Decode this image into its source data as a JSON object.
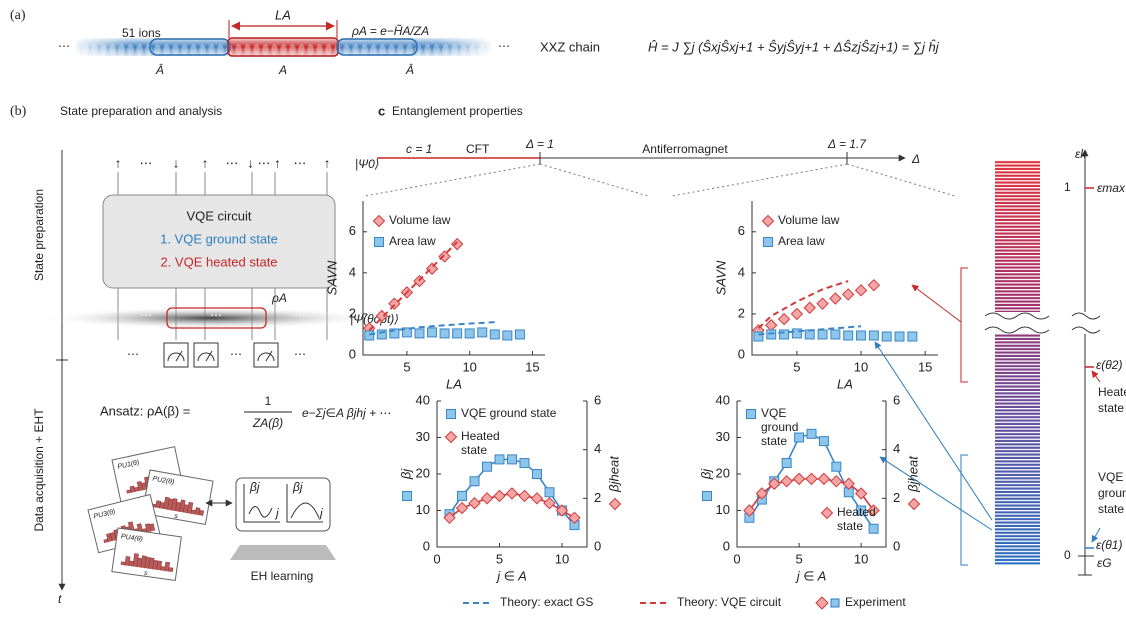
{
  "panel_a": {
    "label": "(a)",
    "ions": "51 ions",
    "subsystem_length": "LA",
    "density": "ρA = e−H̃A/ZA",
    "left_region": "Ā",
    "middle_region": "A",
    "right_region": "Ā",
    "ellipsis": "⋯",
    "chain_name": "XXZ chain",
    "hamiltonian": "Ĥ = J ∑j (ŜxjŜxj+1 + ŜyjŜyj+1 + ΔŜzjŜzj+1) = ∑j ĥj"
  },
  "panel_b": {
    "label": "(b)",
    "title": "State preparation and analysis",
    "stage_1": "State preparation",
    "stage_2": "Data acquisition + EHT",
    "time": "t",
    "top_labels": [
      "↑",
      "⋯",
      "↓",
      "↑",
      "⋯",
      "↓ ⋯ ↑",
      "⋯",
      "↑"
    ],
    "input_state": "|Ψ0⟩",
    "circuit_title": "VQE circuit",
    "circuit_item_1": "1. VQE ground state",
    "circuit_item_2": "2. VQE heated state",
    "rho": "ρA",
    "output_state": "|Ψ(θopt)⟩",
    "ellipsis": "⋯",
    "ansatz_lhs": "Ansatz: ρA(β) =",
    "ansatz_numerator": "1",
    "ansatz_denominator": "ZA(β)",
    "ansatz_exponent": "e−Σj∈A βjhj + ⋯",
    "card_labels": [
      "PU1(θ)",
      "PU2(θ)",
      "PU3(θ)",
      "PU4(θ)"
    ],
    "card_axis": "s",
    "eh_y": "βj",
    "eh_x": "j",
    "eh_title": "EH learning"
  },
  "panel_c": {
    "label": "c",
    "title": "Entanglement properties",
    "phase_1": "c = 1",
    "phase_2": "CFT",
    "point_1": "Δ = 1",
    "phase_3": "Antiferromagnet",
    "point_2": "Δ = 1.7",
    "axis": "Δ"
  },
  "spectrum": {
    "axis": "εk",
    "top_value": "1",
    "top_label": "εmax",
    "heated_level": "ε(θ2)",
    "heated_label": "Heated state",
    "ground_label": "VQE ground state",
    "ground_level": "ε(θ1)",
    "bottom_value": "0",
    "bottom_label": "εG"
  },
  "experiment_label": "Experiment",
  "chart_data": [
    {
      "type": "line",
      "xlabel": "LA",
      "ylabel": "SAVN",
      "xlim": [
        1.5,
        16
      ],
      "ylim": [
        0,
        7.5
      ],
      "xticks": [
        5,
        10,
        15
      ],
      "yticks": [
        0,
        2,
        4,
        6
      ],
      "series": [
        {
          "name": "Volume law",
          "color": "#d23a3a",
          "marker": "diamond",
          "style": "markers",
          "x": [
            2,
            3,
            4,
            5,
            6,
            7,
            8,
            9
          ],
          "values": [
            1.3,
            1.9,
            2.5,
            3.05,
            3.6,
            4.2,
            4.8,
            5.4
          ]
        },
        {
          "name": "Area law",
          "color": "#3a86c8",
          "marker": "square",
          "style": "markers",
          "x": [
            2,
            3,
            4,
            5,
            6,
            7,
            8,
            9,
            10,
            11,
            12,
            13,
            14
          ],
          "values": [
            0.95,
            1.0,
            1.05,
            1.1,
            1.05,
            1.1,
            1.05,
            1.05,
            1.05,
            1.1,
            1.0,
            0.95,
            1.0
          ]
        },
        {
          "name": "Theory: exact GS",
          "color": "#3a86c8",
          "style": "dashed",
          "x": [
            2,
            4,
            6,
            8,
            10,
            12
          ],
          "values": [
            1.0,
            1.2,
            1.35,
            1.45,
            1.53,
            1.6
          ]
        },
        {
          "name": "Theory: VQE circuit",
          "color": "#d23a3a",
          "style": "dashed",
          "x": [
            2,
            9
          ],
          "values": [
            1.2,
            5.5
          ]
        }
      ]
    },
    {
      "type": "line",
      "xlabel": "LA",
      "ylabel": "SAVN",
      "xlim": [
        1.5,
        16
      ],
      "ylim": [
        0,
        7.5
      ],
      "xticks": [
        5,
        10,
        15
      ],
      "yticks": [
        0,
        2,
        4,
        6
      ],
      "series": [
        {
          "name": "Volume law",
          "color": "#d23a3a",
          "marker": "diamond",
          "style": "markers",
          "x": [
            2,
            3,
            4,
            5,
            6,
            7,
            8,
            9,
            10,
            11
          ],
          "values": [
            1.2,
            1.45,
            1.75,
            2.0,
            2.3,
            2.5,
            2.75,
            2.95,
            3.15,
            3.4
          ]
        },
        {
          "name": "Area law",
          "color": "#3a86c8",
          "marker": "square",
          "style": "markers",
          "x": [
            2,
            3,
            4,
            5,
            6,
            7,
            8,
            9,
            10,
            11,
            12,
            13,
            14
          ],
          "values": [
            0.9,
            1.0,
            1.0,
            1.05,
            1.0,
            1.0,
            1.0,
            0.95,
            0.95,
            0.95,
            0.9,
            0.9,
            0.9
          ]
        },
        {
          "color": "#3a86c8",
          "style": "dashed",
          "x": [
            2,
            10
          ],
          "values": [
            1.0,
            1.4
          ]
        },
        {
          "color": "#d23a3a",
          "style": "dashed",
          "x": [
            2,
            3,
            5,
            7,
            9
          ],
          "values": [
            1.3,
            1.9,
            2.6,
            3.2,
            3.6
          ]
        }
      ]
    },
    {
      "type": "line",
      "xlabel": "j ∈ A",
      "ylabel": "βj",
      "y2label": "βjheat",
      "xlim": [
        0,
        12
      ],
      "ylim": [
        0,
        40
      ],
      "y2lim": [
        0,
        6
      ],
      "xticks": [
        0,
        5,
        10
      ],
      "yticks": [
        0,
        10,
        20,
        30,
        40
      ],
      "y2ticks": [
        0,
        2,
        4,
        6
      ],
      "series": [
        {
          "name": "VQE ground state",
          "color": "#3a86c8",
          "marker": "square",
          "style": "line+markers",
          "x": [
            1,
            2,
            3,
            4,
            5,
            6,
            7,
            8,
            9,
            10,
            11
          ],
          "values": [
            9,
            14,
            18,
            22,
            24,
            24,
            23,
            20,
            15,
            10,
            6
          ]
        },
        {
          "name": "Heated state",
          "color": "#d23a3a",
          "marker": "diamond",
          "style": "line+markers",
          "axis": "y2",
          "x": [
            1,
            2,
            3,
            4,
            5,
            6,
            7,
            8,
            9,
            10,
            11
          ],
          "values": [
            1.2,
            1.6,
            1.8,
            2.0,
            2.1,
            2.2,
            2.1,
            2.0,
            1.8,
            1.5,
            1.2
          ]
        }
      ]
    },
    {
      "type": "line",
      "xlabel": "j ∈ A",
      "ylabel": "βj",
      "y2label": "βjheat",
      "xlim": [
        0,
        12
      ],
      "ylim": [
        0,
        40
      ],
      "y2lim": [
        0,
        6
      ],
      "xticks": [
        0,
        5,
        10
      ],
      "yticks": [
        0,
        10,
        20,
        30,
        40
      ],
      "y2ticks": [
        0,
        2,
        4,
        6
      ],
      "series": [
        {
          "name": "VQE ground state",
          "color": "#3a86c8",
          "marker": "square",
          "style": "line+markers",
          "x": [
            1,
            2,
            3,
            4,
            5,
            6,
            7,
            8,
            9,
            10,
            11
          ],
          "values": [
            8,
            13,
            18,
            23,
            30,
            31,
            29,
            22,
            15,
            10,
            5
          ]
        },
        {
          "name": "Heated state",
          "color": "#d23a3a",
          "marker": "diamond",
          "style": "line+markers",
          "axis": "y2",
          "x": [
            1,
            2,
            3,
            4,
            5,
            6,
            7,
            8,
            9,
            10,
            11
          ],
          "values": [
            1.5,
            2.2,
            2.6,
            2.7,
            2.8,
            2.8,
            2.8,
            2.7,
            2.6,
            2.2,
            1.5
          ]
        }
      ]
    }
  ]
}
